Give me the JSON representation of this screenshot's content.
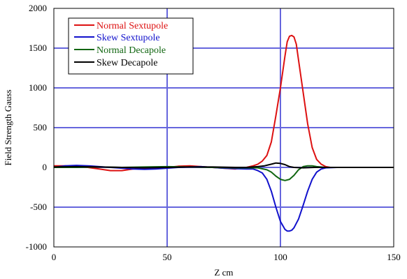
{
  "chart_data": {
    "type": "line",
    "title": "",
    "xlabel": "Z cm",
    "ylabel": "Field Strength  Gauss",
    "xlim": [
      0,
      150
    ],
    "ylim": [
      -1000,
      2000
    ],
    "x_ticks": [
      0,
      50,
      100,
      150
    ],
    "y_ticks": [
      -1000,
      -500,
      0,
      500,
      1000,
      1500,
      2000
    ],
    "grid": true,
    "legend_position": "top-left",
    "colors": {
      "grid": "#6666dd",
      "frame": "#000000",
      "background": "#ffffff"
    },
    "series": [
      {
        "name": "Normal Sextupole",
        "color": "#dd1111",
        "points": [
          [
            -2,
            20
          ],
          [
            5,
            20
          ],
          [
            10,
            10
          ],
          [
            15,
            0
          ],
          [
            20,
            -20
          ],
          [
            25,
            -40
          ],
          [
            30,
            -40
          ],
          [
            35,
            -20
          ],
          [
            40,
            -10
          ],
          [
            45,
            -10
          ],
          [
            50,
            0
          ],
          [
            55,
            15
          ],
          [
            60,
            20
          ],
          [
            65,
            10
          ],
          [
            70,
            0
          ],
          [
            75,
            -10
          ],
          [
            80,
            -20
          ],
          [
            85,
            0
          ],
          [
            88,
            20
          ],
          [
            90,
            40
          ],
          [
            92,
            80
          ],
          [
            94,
            150
          ],
          [
            96,
            320
          ],
          [
            98,
            650
          ],
          [
            100,
            1000
          ],
          [
            102,
            1400
          ],
          [
            103,
            1580
          ],
          [
            104,
            1650
          ],
          [
            105,
            1660
          ],
          [
            106,
            1640
          ],
          [
            107,
            1550
          ],
          [
            108,
            1350
          ],
          [
            110,
            950
          ],
          [
            112,
            550
          ],
          [
            114,
            250
          ],
          [
            116,
            100
          ],
          [
            118,
            40
          ],
          [
            120,
            10
          ],
          [
            122,
            0
          ],
          [
            125,
            0
          ],
          [
            150,
            0
          ]
        ]
      },
      {
        "name": "Skew Sextupole",
        "color": "#1111cc",
        "points": [
          [
            -2,
            0
          ],
          [
            5,
            20
          ],
          [
            10,
            25
          ],
          [
            15,
            20
          ],
          [
            20,
            10
          ],
          [
            25,
            0
          ],
          [
            30,
            -10
          ],
          [
            35,
            -20
          ],
          [
            40,
            -25
          ],
          [
            45,
            -20
          ],
          [
            50,
            -10
          ],
          [
            55,
            0
          ],
          [
            60,
            5
          ],
          [
            65,
            10
          ],
          [
            70,
            0
          ],
          [
            75,
            -10
          ],
          [
            80,
            -15
          ],
          [
            85,
            -20
          ],
          [
            88,
            -20
          ],
          [
            90,
            -40
          ],
          [
            92,
            -70
          ],
          [
            94,
            -150
          ],
          [
            96,
            -300
          ],
          [
            98,
            -500
          ],
          [
            100,
            -680
          ],
          [
            102,
            -780
          ],
          [
            103,
            -800
          ],
          [
            104,
            -800
          ],
          [
            105,
            -790
          ],
          [
            106,
            -760
          ],
          [
            108,
            -650
          ],
          [
            110,
            -480
          ],
          [
            112,
            -300
          ],
          [
            114,
            -150
          ],
          [
            116,
            -60
          ],
          [
            118,
            -20
          ],
          [
            120,
            -5
          ],
          [
            125,
            0
          ],
          [
            150,
            0
          ]
        ]
      },
      {
        "name": "Normal Decapole",
        "color": "#116611",
        "points": [
          [
            -2,
            0
          ],
          [
            10,
            0
          ],
          [
            20,
            5
          ],
          [
            30,
            0
          ],
          [
            40,
            5
          ],
          [
            50,
            10
          ],
          [
            60,
            5
          ],
          [
            70,
            0
          ],
          [
            80,
            -5
          ],
          [
            85,
            -5
          ],
          [
            90,
            -5
          ],
          [
            94,
            -30
          ],
          [
            96,
            -60
          ],
          [
            98,
            -110
          ],
          [
            100,
            -150
          ],
          [
            102,
            -165
          ],
          [
            104,
            -150
          ],
          [
            106,
            -100
          ],
          [
            108,
            -30
          ],
          [
            110,
            10
          ],
          [
            112,
            20
          ],
          [
            114,
            20
          ],
          [
            116,
            10
          ],
          [
            120,
            0
          ],
          [
            150,
            0
          ]
        ]
      },
      {
        "name": "Skew Decapole",
        "color": "#000000",
        "points": [
          [
            -2,
            5
          ],
          [
            10,
            10
          ],
          [
            20,
            5
          ],
          [
            30,
            0
          ],
          [
            40,
            -5
          ],
          [
            50,
            0
          ],
          [
            60,
            5
          ],
          [
            70,
            5
          ],
          [
            80,
            0
          ],
          [
            85,
            0
          ],
          [
            90,
            10
          ],
          [
            93,
            20
          ],
          [
            96,
            40
          ],
          [
            98,
            55
          ],
          [
            100,
            50
          ],
          [
            102,
            35
          ],
          [
            104,
            10
          ],
          [
            106,
            0
          ],
          [
            110,
            -5
          ],
          [
            115,
            0
          ],
          [
            150,
            0
          ]
        ]
      }
    ]
  }
}
